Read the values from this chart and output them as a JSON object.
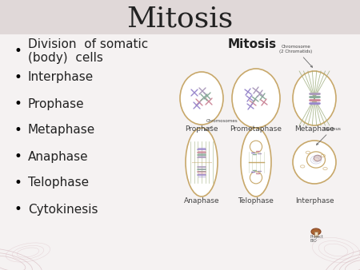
{
  "title": "Mitosis",
  "bg_color": "#f5f2f2",
  "header_bg": "#e0d8d8",
  "title_fontsize": 26,
  "bullet_items": [
    "Division  of somatic\n(body)  cells",
    "Interphase",
    "Prophase",
    "Metaphase",
    "Anaphase",
    "Telophase",
    "Cytokinesis"
  ],
  "bullet_fontsize": 11,
  "diagram_label": "Mitosis",
  "row1_labels": [
    "Prophase",
    "Prometaphase",
    "Metaphase"
  ],
  "row2_labels": [
    "Anaphase",
    "Telophase",
    "Interphase"
  ],
  "cell_edge_color": "#c8a86a",
  "chrom_colors": [
    "#9988cc",
    "#cc8899",
    "#88aa99",
    "#aa99bb"
  ],
  "spindle_color": "#99aa77",
  "text_color": "#222222",
  "label_color": "#444444",
  "accent_rose": "#c9a0a8",
  "accent_rose2": "#d4b0b8"
}
